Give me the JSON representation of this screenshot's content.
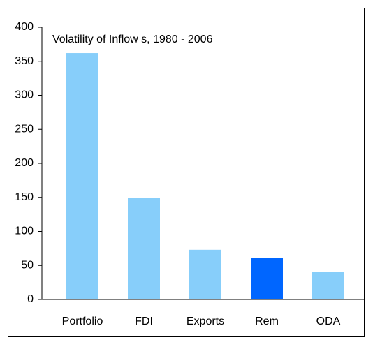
{
  "chart_data": {
    "type": "bar",
    "title": "Volatility of Inflow s, 1980 - 2006",
    "categories": [
      "Portfolio",
      "FDI",
      "Exports",
      "Rem",
      "ODA"
    ],
    "values": [
      362,
      149,
      73,
      61,
      41
    ],
    "colors": [
      "#87cefa",
      "#87cefa",
      "#87cefa",
      "#0066ff",
      "#87cefa"
    ],
    "ylim": [
      0,
      400
    ],
    "yticks": [
      0,
      50,
      100,
      150,
      200,
      250,
      300,
      350,
      400
    ],
    "grid": false
  }
}
